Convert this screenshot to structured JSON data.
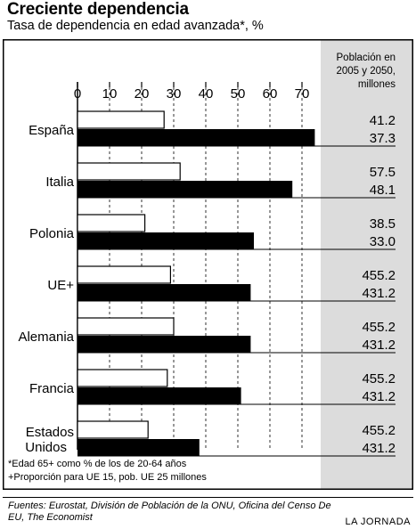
{
  "header": {
    "title": "Creciente dependencia",
    "subtitle": "Tasa de dependencia en edad avanzada*, %"
  },
  "chart_data": {
    "type": "bar",
    "orientation": "horizontal",
    "categories": [
      "España",
      "Italia",
      "Polonia",
      "UE+",
      "Alemania",
      "Francia",
      "Estados Unidos"
    ],
    "series": [
      {
        "values": [
          27,
          32,
          21,
          29,
          30,
          28,
          22
        ],
        "color": "#ffffff"
      },
      {
        "values": [
          74,
          67,
          55,
          54,
          54,
          51,
          38
        ],
        "color": "#000000"
      }
    ],
    "x_ticks": [
      0,
      10,
      20,
      30,
      40,
      50,
      60,
      70
    ],
    "xlim": [
      0,
      78
    ],
    "grid": "dashed vertical",
    "population": {
      "header": "Población en 2005 y 2050, millones",
      "values_2005": [
        "41.2",
        "57.5",
        "38.5",
        "455.2",
        "455.2",
        "455.2",
        "455.2"
      ],
      "values_2050": [
        "37.3",
        "48.1",
        "33.0",
        "431.2",
        "431.2",
        "431.2",
        "431.2"
      ]
    }
  },
  "notes": [
    "*Edad 65+ como % de los de 20-64 años",
    "+Proporción para UE 15, pob. UE 25 millones"
  ],
  "source": "Fuentes: Eurostat, División de Población de la ONU, Oficina del Censo De EU, The Economist",
  "brand": "LA JORNADA"
}
